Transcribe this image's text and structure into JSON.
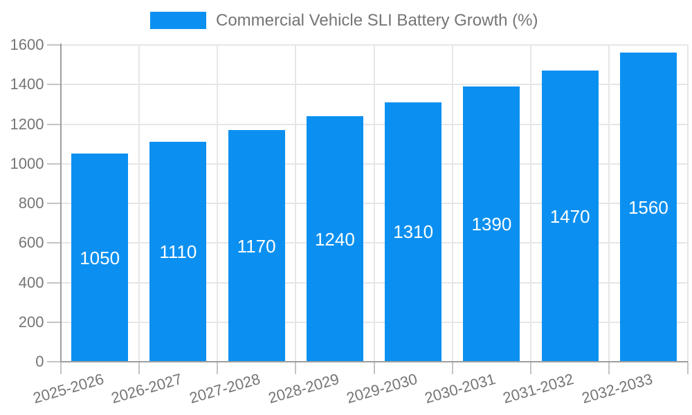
{
  "chart_data": {
    "type": "bar",
    "title": "Commercial Vehicle SLI Battery Growth (%)",
    "categories": [
      "2025-2026",
      "2026-2027",
      "2027-2028",
      "2028-2029",
      "2029-2030",
      "2030-2031",
      "2031-2032",
      "2032-2033"
    ],
    "values": [
      1050,
      1110,
      1170,
      1240,
      1310,
      1390,
      1470,
      1560
    ],
    "xlabel": "",
    "ylabel": "",
    "ylim": [
      0,
      1600
    ],
    "yticks": [
      0,
      200,
      400,
      600,
      800,
      1000,
      1200,
      1400,
      1600
    ],
    "grid": true,
    "legend_position": "top",
    "bar_value_labels": "inside-center"
  },
  "colors": {
    "bar": "#0b90f1",
    "bar_label": "#ffffff",
    "grid": "#e6e6e6",
    "axis": "#9e9e9e",
    "tick_mark": "#c4c4c4",
    "tick_label": "#757575",
    "background": "#ffffff"
  }
}
